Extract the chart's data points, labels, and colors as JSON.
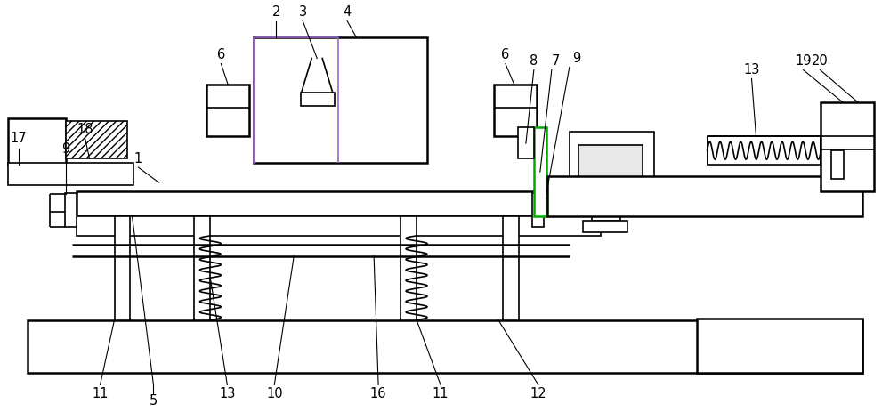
{
  "fig_width": 10.0,
  "fig_height": 4.63,
  "dpi": 100,
  "bg_color": "#ffffff",
  "lc": "#000000",
  "green_color": "#00aa00",
  "purple_color": "#9966cc",
  "label_fs": 10.5
}
